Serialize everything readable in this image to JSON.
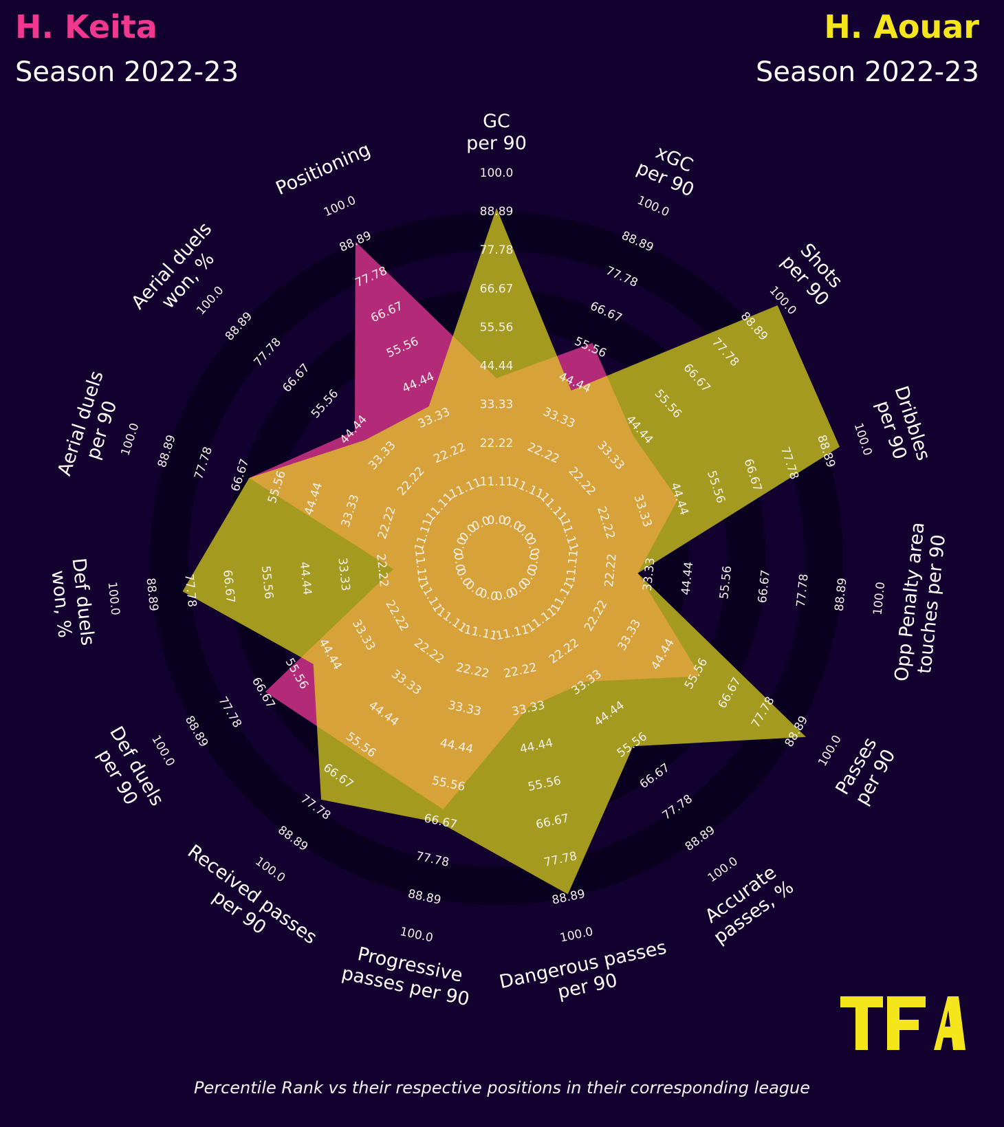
{
  "header": {
    "player1": {
      "name": "H. Keita",
      "season": "Season 2022-23",
      "color": "#f0388f"
    },
    "player2": {
      "name": "H. Aouar",
      "season": "Season 2022-23",
      "color": "#f5e61c"
    }
  },
  "footer": {
    "note": "Percentile Rank vs their respective positions in their corresponding league"
  },
  "logo": {
    "text": "TFA",
    "color": "#f5e61c"
  },
  "colors": {
    "background": "#12002f",
    "ring_dark": "#090020",
    "keita_fill": "#b32a78",
    "aouar_fill": "#a59a20",
    "overlap_fill": "#d7a23a"
  },
  "chart_data": {
    "type": "radar",
    "ring_values": [
      "0.0",
      "11.11",
      "22.22",
      "33.33",
      "44.44",
      "55.56",
      "66.67",
      "77.78",
      "88.89",
      "100.0"
    ],
    "range": [
      0,
      100
    ],
    "params": [
      {
        "lines": [
          "GC",
          "per 90"
        ]
      },
      {
        "lines": [
          "xGC",
          "per 90"
        ]
      },
      {
        "lines": [
          "Shots",
          "per 90"
        ]
      },
      {
        "lines": [
          "Dribbles",
          "per 90"
        ]
      },
      {
        "lines": [
          "Opp Penalty area",
          "touches per 90"
        ]
      },
      {
        "lines": [
          "Passes",
          "per 90"
        ]
      },
      {
        "lines": [
          "Accurate",
          "passes, %"
        ]
      },
      {
        "lines": [
          "Dangerous passes",
          "per 90"
        ]
      },
      {
        "lines": [
          "Progressive",
          "passes per 90"
        ]
      },
      {
        "lines": [
          "Received passes",
          "per 90"
        ]
      },
      {
        "lines": [
          "Def duels",
          "per 90"
        ]
      },
      {
        "lines": [
          "Def duels",
          "won, %"
        ]
      },
      {
        "lines": [
          "Aerial duels",
          "per 90"
        ]
      },
      {
        "lines": [
          "Aerial duels",
          "won, %"
        ]
      },
      {
        "lines": [
          "Positioning"
        ]
      }
    ],
    "series": [
      {
        "name": "H. Keita",
        "values": [
          41,
          57,
          42,
          44,
          30,
          57,
          33,
          33,
          63,
          58,
          66,
          19,
          64,
          44,
          89
        ]
      },
      {
        "name": "H. Aouar",
        "values": [
          90,
          42,
          98,
          93,
          30,
          92,
          56,
          88,
          67,
          75,
          50,
          80,
          64,
          40,
          37
        ]
      }
    ]
  }
}
